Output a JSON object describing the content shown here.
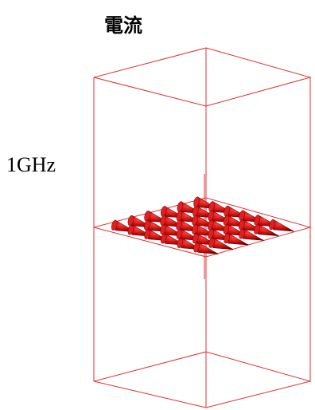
{
  "title": "電流",
  "frequency_label": "1GHz",
  "colors": {
    "wireframe": "#e03030",
    "arrows": "#cc1010"
  }
}
